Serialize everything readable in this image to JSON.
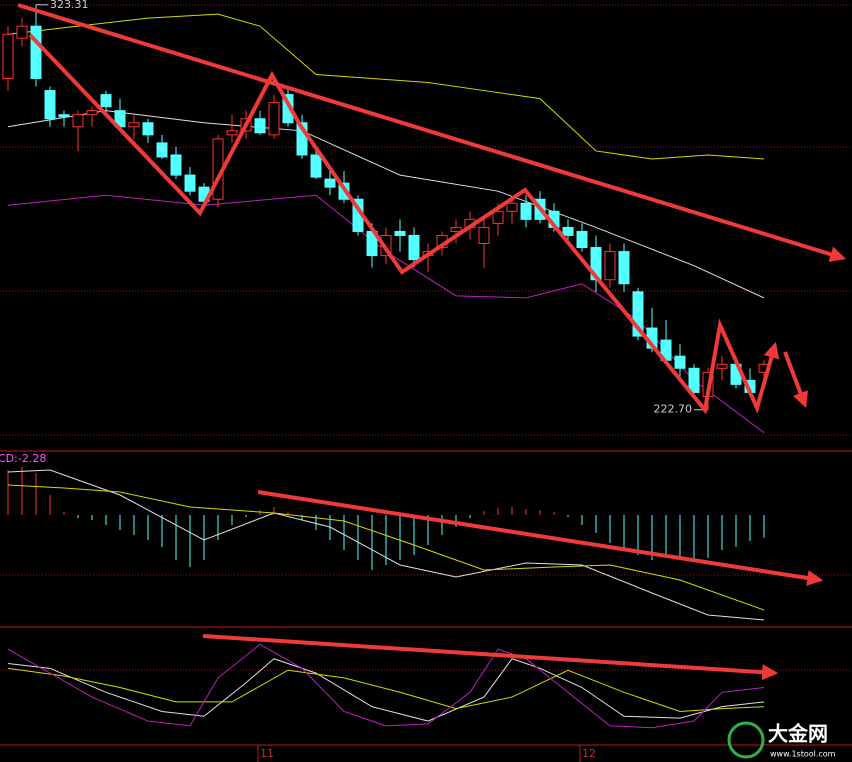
{
  "chart_data": [
    {
      "type": "candlestick",
      "categories": [
        null,
        null,
        null,
        null,
        null,
        null,
        null,
        null,
        null,
        null,
        null,
        null,
        null,
        null,
        null,
        null,
        null,
        null,
        "11",
        null,
        null,
        null,
        null,
        null,
        null,
        null,
        null,
        null,
        null,
        null,
        null,
        null,
        null,
        null,
        null,
        null,
        null,
        null,
        null,
        null,
        null,
        "12",
        null,
        null,
        null,
        null,
        null,
        null,
        null,
        null,
        null,
        null,
        null,
        null,
        null
      ],
      "open": [
        305,
        315,
        318,
        302,
        296,
        293,
        296,
        301,
        297,
        293,
        294,
        289,
        286,
        281,
        278,
        275,
        291,
        292,
        295,
        291,
        301,
        294,
        286,
        280,
        279,
        275,
        267,
        261,
        267,
        266,
        261,
        263,
        267,
        268,
        264,
        269,
        272,
        274,
        275,
        272,
        268,
        267,
        263,
        255,
        262,
        252,
        243,
        240,
        236,
        233,
        226,
        233,
        234,
        230,
        232
      ],
      "high": [
        318,
        320,
        323.31,
        303,
        297,
        297,
        298,
        302,
        300,
        296,
        295,
        291,
        288,
        283,
        279,
        291,
        296,
        297,
        297,
        301,
        303,
        296,
        288,
        283,
        282,
        276,
        269,
        268,
        270,
        268,
        264,
        267,
        270,
        272,
        271,
        274,
        275,
        276,
        277,
        274,
        270,
        269,
        266,
        264,
        264,
        253,
        248,
        245,
        239,
        234,
        233,
        236,
        236,
        233,
        235
      ],
      "low": [
        302,
        313,
        303,
        293,
        293,
        287,
        293,
        296,
        292,
        290,
        289,
        285,
        280,
        276,
        274,
        273,
        289,
        290,
        291,
        290,
        293,
        285,
        280,
        276,
        274,
        266,
        258,
        259,
        262,
        258,
        257,
        261,
        264,
        265,
        258,
        266,
        269,
        268,
        269,
        267,
        265,
        262,
        252,
        253,
        252,
        240,
        237,
        234,
        231,
        226,
        222.7,
        230,
        228,
        226,
        231
      ],
      "close": [
        316,
        318,
        305,
        295,
        295.5,
        296,
        297,
        298,
        293,
        294,
        291,
        285.5,
        281,
        277,
        274.5,
        290,
        292,
        295,
        291.5,
        299,
        294,
        286,
        280.5,
        278,
        275,
        267,
        261,
        266,
        266,
        260,
        262,
        266,
        268,
        270,
        268,
        272,
        274,
        270,
        270,
        268,
        266,
        263,
        255,
        262,
        254,
        241,
        238,
        235,
        233,
        227,
        232,
        234,
        229,
        227,
        234
      ],
      "up_color": "#ff3232",
      "down_color": "#54ffff",
      "ylim": [
        212.7,
        324.5
      ],
      "series": [
        {
          "color": "#d8d800",
          "x": [
            0,
            5,
            10,
            15,
            18,
            22,
            26,
            30,
            34,
            38,
            42,
            46,
            50,
            54
          ],
          "values": [
            316,
            318,
            320,
            321,
            318,
            306,
            305,
            304,
            302,
            300,
            287,
            285,
            286,
            285
          ]
        },
        {
          "color": "#e0e0e0",
          "x": [
            0,
            7,
            14,
            21,
            28,
            35,
            42,
            49,
            54
          ],
          "values": [
            293,
            297,
            294,
            292,
            281,
            277,
            268,
            258.5,
            250.5
          ]
        },
        {
          "color": "#c020c0",
          "x": [
            0,
            7,
            14,
            22,
            27,
            32,
            37,
            41,
            45,
            49,
            54
          ],
          "values": [
            273.5,
            276,
            273.5,
            276,
            262,
            251,
            250.5,
            254,
            245,
            230,
            217
          ]
        }
      ],
      "annotations": [
        {
          "value": 323.31,
          "label": "323.31"
        },
        {
          "value": 222.7,
          "label": "222.70"
        }
      ]
    },
    {
      "type": "macd",
      "title": "CD:-2.28",
      "values": [
        4.5,
        4.8,
        4.2,
        2.0,
        0.3,
        -0.3,
        -0.5,
        -1.0,
        -1.5,
        -2.0,
        -2.5,
        -3.2,
        -4.5,
        -5.2,
        -4.5,
        -2.5,
        -1.0,
        -0.2,
        0.5,
        0.8,
        0.3,
        -0.5,
        -1.5,
        -2.5,
        -3.5,
        -4.5,
        -5.5,
        -5.0,
        -4.5,
        -4.0,
        -3.0,
        -2.0,
        -1.2,
        -0.3,
        0.4,
        0.7,
        0.8,
        0.6,
        0.5,
        0.3,
        -0.2,
        -1.0,
        -1.8,
        -2.8,
        -3.5,
        -4.0,
        -4.5,
        -4.3,
        -4.5,
        -4.6,
        -4.3,
        -3.5,
        -3.2,
        -2.6,
        -2.28
      ],
      "up_color": "#ff3232",
      "down_color": "#54ffff",
      "ylim": [
        -11,
        6
      ],
      "series": [
        {
          "color": "#e0e0e0",
          "x": [
            0,
            3,
            8,
            14,
            19,
            23,
            28,
            32,
            37,
            41,
            46,
            50,
            54
          ],
          "values": [
            4.3,
            4.5,
            2.0,
            -2.5,
            0.2,
            -1.2,
            -5,
            -6.2,
            -4.8,
            -5,
            -7.8,
            -10,
            -10.5
          ]
        },
        {
          "color": "#d8d800",
          "x": [
            0,
            4,
            8,
            13,
            19,
            24,
            29,
            34,
            39,
            43,
            48,
            54
          ],
          "values": [
            3,
            2.7,
            2.3,
            0.8,
            0.2,
            -0.6,
            -3,
            -5.5,
            -5.2,
            -5,
            -6.5,
            -9.5
          ]
        }
      ]
    },
    {
      "type": "kdj",
      "ylim": [
        -10,
        110
      ],
      "series": [
        {
          "color": "#e0e0e0",
          "x": [
            0,
            3,
            7,
            11,
            14,
            17,
            19,
            22,
            26,
            30,
            34,
            36,
            38,
            41,
            44,
            48,
            51,
            54
          ],
          "values": [
            75,
            70,
            45,
            25,
            20,
            55,
            80,
            65,
            30,
            15,
            40,
            80,
            70,
            50,
            20,
            18,
            30,
            35
          ]
        },
        {
          "color": "#d8d800",
          "x": [
            0,
            4,
            8,
            12,
            16,
            20,
            24,
            28,
            32,
            36,
            40,
            44,
            48,
            51,
            54
          ],
          "values": [
            70,
            62,
            50,
            35,
            35,
            68,
            60,
            45,
            28,
            40,
            68,
            45,
            25,
            28,
            30
          ]
        },
        {
          "color": "#c020c0",
          "x": [
            0,
            3,
            6,
            10,
            13,
            15,
            18,
            21,
            24,
            27,
            30,
            33,
            35,
            37,
            40,
            43,
            46,
            49,
            51,
            54
          ],
          "values": [
            90,
            65,
            40,
            15,
            10,
            60,
            95,
            70,
            25,
            10,
            12,
            45,
            90,
            80,
            45,
            10,
            8,
            15,
            45,
            50
          ]
        }
      ]
    }
  ],
  "watermark": {
    "title": "大金网",
    "subtitle": "www.1stool.com"
  }
}
